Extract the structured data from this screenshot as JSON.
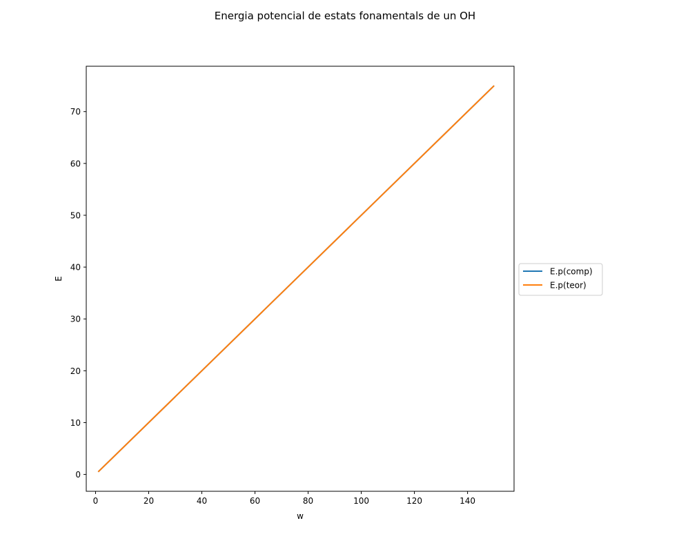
{
  "chart_data": {
    "type": "line",
    "title": "Energia potencial de estats fonamentals de un OH",
    "xlabel": "w",
    "ylabel": "E",
    "xlim": [
      -3.5,
      157.5
    ],
    "ylim": [
      -3.25,
      78.75
    ],
    "xticks": [
      0,
      20,
      40,
      60,
      80,
      100,
      120,
      140
    ],
    "yticks": [
      0,
      10,
      20,
      30,
      40,
      50,
      60,
      70
    ],
    "grid": false,
    "legend_position": "center-right-outside",
    "series": [
      {
        "name": "E.p(comp)",
        "color": "#1f77b4",
        "x": [
          1,
          150
        ],
        "y": [
          0.5,
          75
        ]
      },
      {
        "name": "E.p(teor)",
        "color": "#ff7f0e",
        "x": [
          1,
          150
        ],
        "y": [
          0.5,
          75
        ]
      }
    ]
  }
}
